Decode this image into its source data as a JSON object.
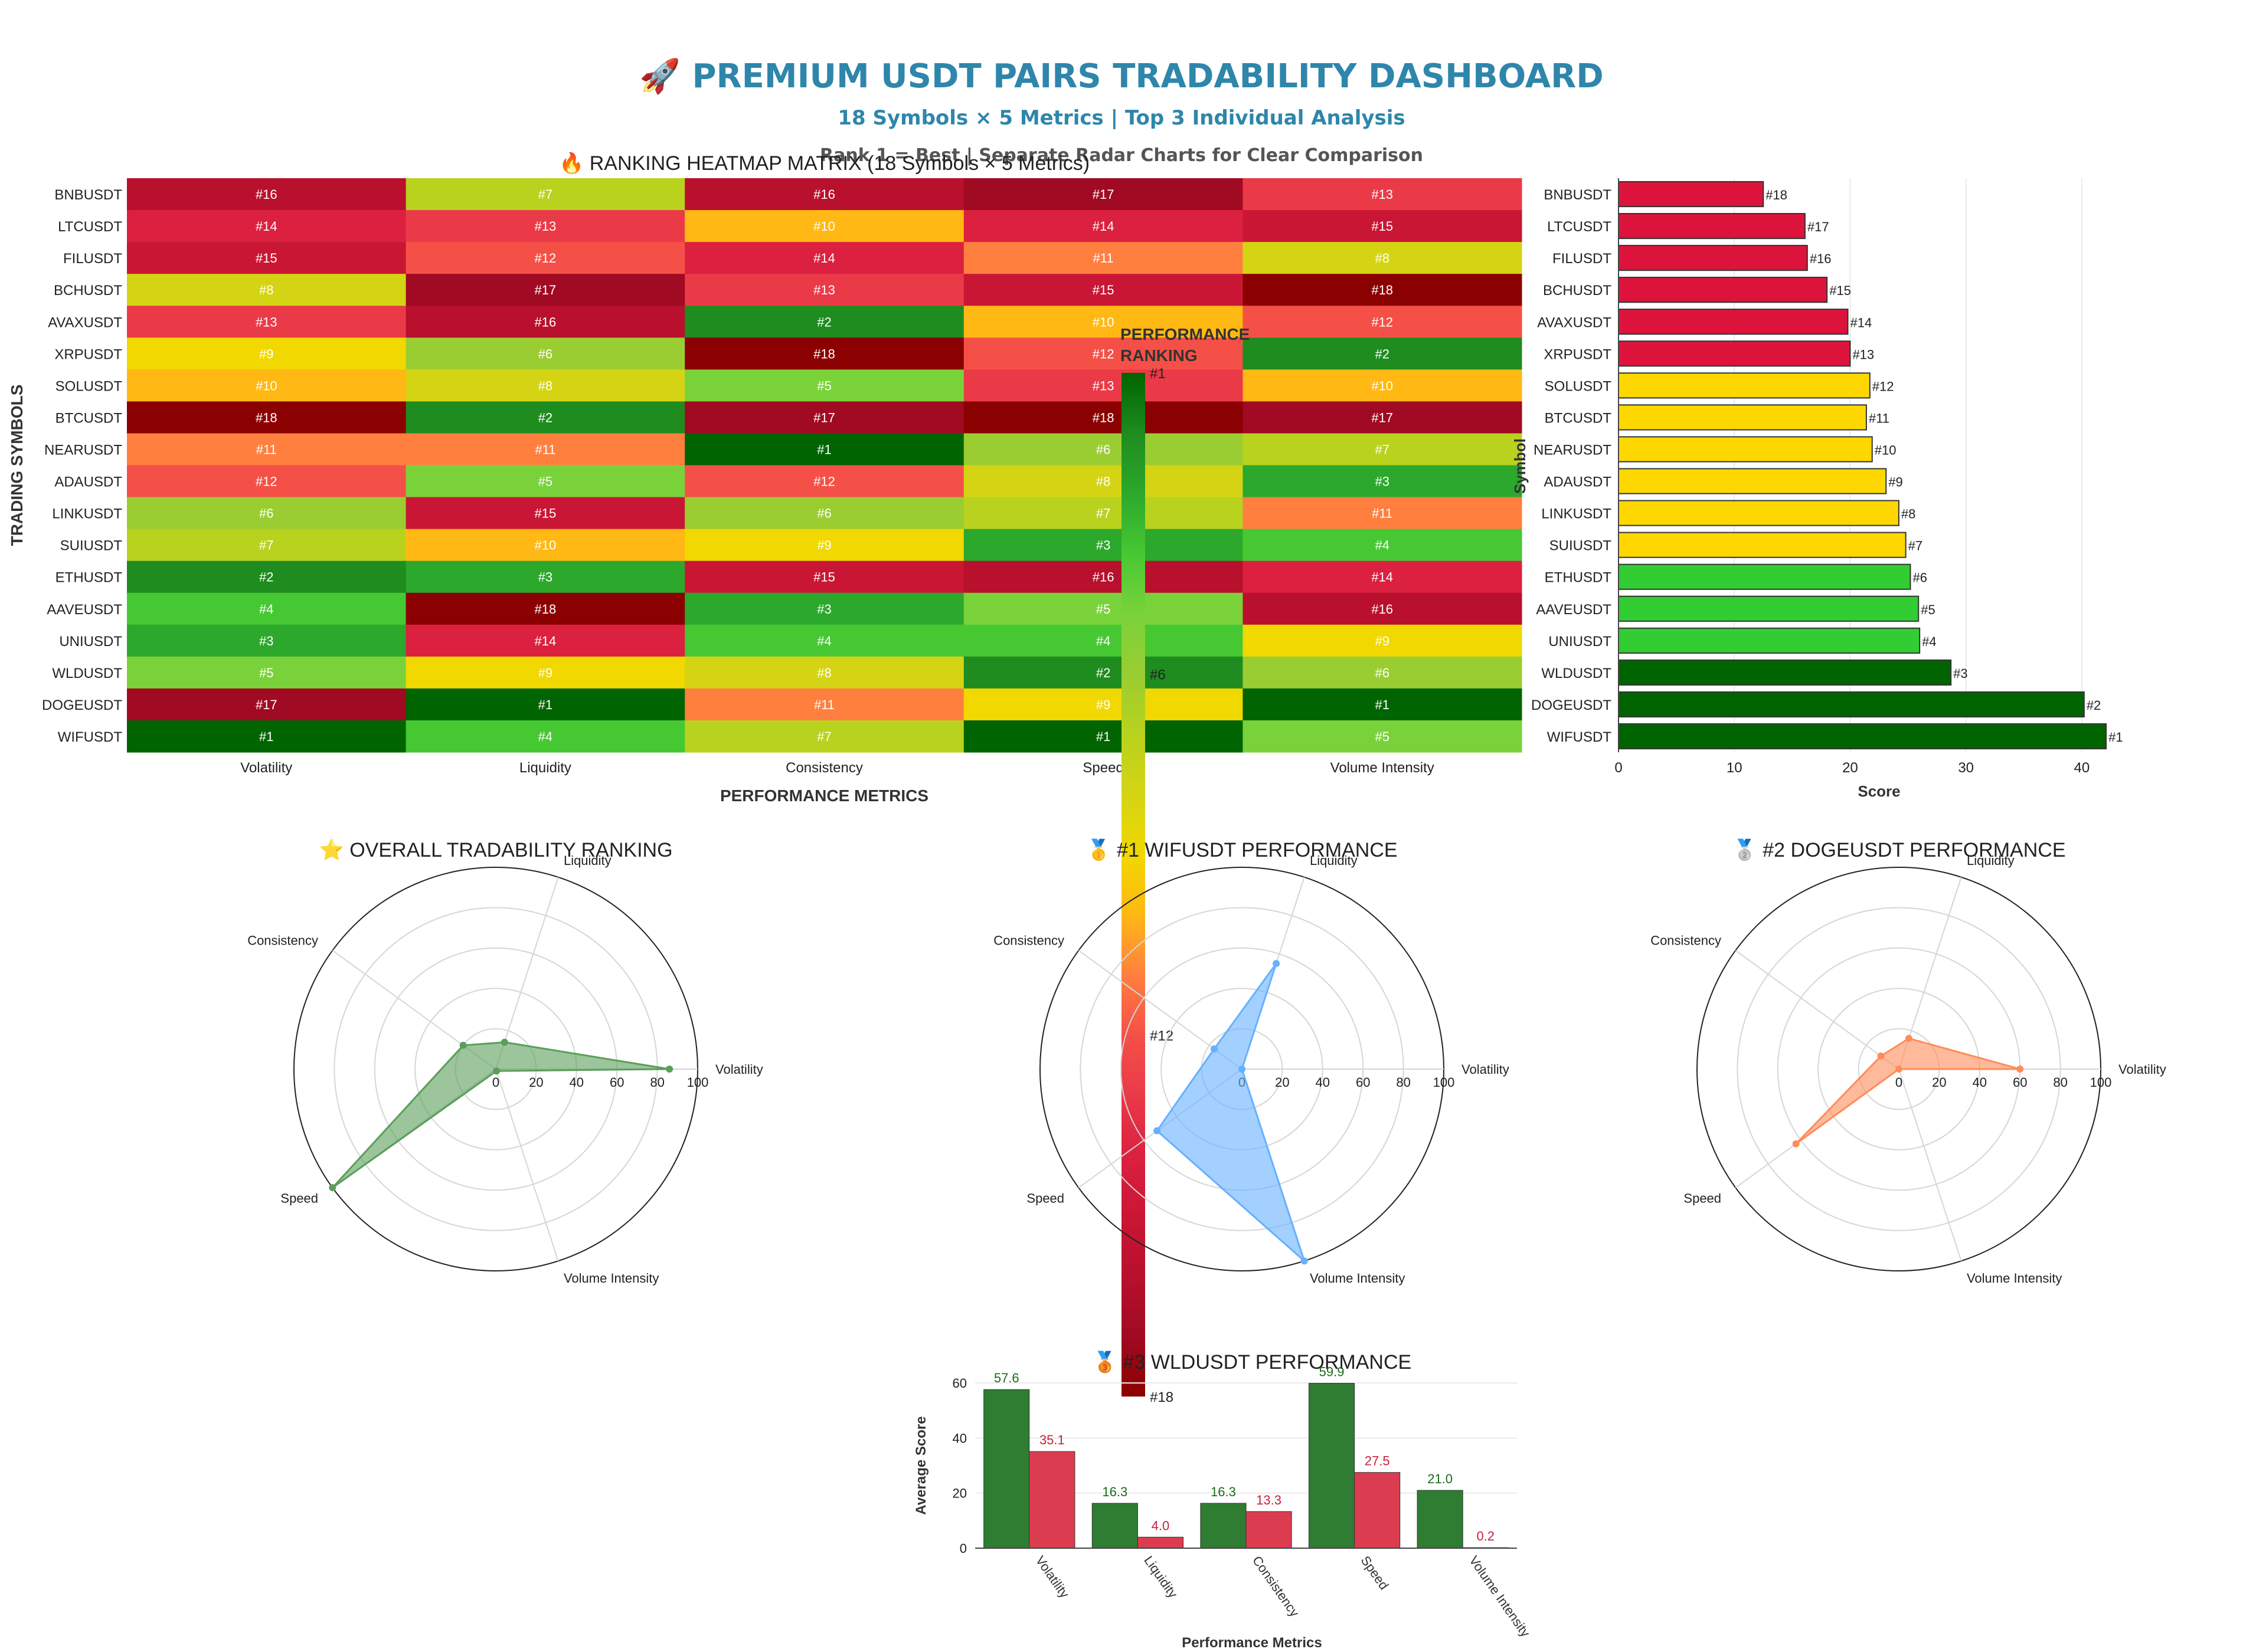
{
  "header": {
    "title": "🚀 PREMIUM USDT PAIRS TRADABILITY DASHBOARD",
    "subtitle": "18 Symbols × 5 Metrics | Top 3 Individual Analysis",
    "subtitle2": "Rank 1 = Best | Separate Radar Charts for Clear Comparison"
  },
  "colors": {
    "title": "#2e86ab",
    "rank_scale": [
      "#006400",
      "#1e8c1e",
      "#2ca82c",
      "#46c832",
      "#7ad23a",
      "#9acd32",
      "#b9d21e",
      "#d4d414",
      "#f0d800",
      "#ffb814",
      "#ff7f3f",
      "#f55047",
      "#ea3a48",
      "#dc2040",
      "#ca1635",
      "#b8102d",
      "#a00a22",
      "#8b0000"
    ],
    "score_bars": {
      "top": "#006400",
      "good": "#32cd32",
      "mid": "#ffd700",
      "low": "#dc143c"
    },
    "radar_overall": "#5a9e5a",
    "radar_wif": "#66b0ff",
    "radar_doge": "#ff8c5a",
    "bar_green": "#2e7d32",
    "bar_red": "#dc3c50"
  },
  "chart_data": [
    {
      "type": "heatmap",
      "title": "🔥 RANKING HEATMAP MATRIX (18 Symbols × 5 Metrics)",
      "xlabel": "PERFORMANCE METRICS",
      "ylabel": "TRADING SYMBOLS",
      "columns": [
        "Volatility",
        "Liquidity",
        "Consistency",
        "Speed",
        "Volume Intensity"
      ],
      "rows": [
        "BNBUSDT",
        "LTCUSDT",
        "FILUSDT",
        "BCHUSDT",
        "AVAXUSDT",
        "XRPUSDT",
        "SOLUSDT",
        "BTCUSDT",
        "NEARUSDT",
        "ADAUSDT",
        "LINKUSDT",
        "SUIUSDT",
        "ETHUSDT",
        "AAVEUSDT",
        "UNIUSDT",
        "WLDUSDT",
        "DOGEUSDT",
        "WIFUSDT"
      ],
      "values": [
        [
          16,
          7,
          16,
          17,
          13
        ],
        [
          14,
          13,
          10,
          14,
          15
        ],
        [
          15,
          12,
          14,
          11,
          8
        ],
        [
          8,
          17,
          13,
          15,
          18
        ],
        [
          13,
          16,
          2,
          10,
          12
        ],
        [
          9,
          6,
          18,
          12,
          2
        ],
        [
          10,
          8,
          5,
          13,
          10
        ],
        [
          18,
          2,
          17,
          18,
          17
        ],
        [
          11,
          11,
          1,
          6,
          7
        ],
        [
          12,
          5,
          12,
          8,
          3
        ],
        [
          6,
          15,
          6,
          7,
          11
        ],
        [
          7,
          10,
          9,
          3,
          4
        ],
        [
          2,
          3,
          15,
          16,
          14
        ],
        [
          4,
          18,
          3,
          5,
          16
        ],
        [
          3,
          14,
          4,
          4,
          9
        ],
        [
          5,
          9,
          8,
          2,
          6
        ],
        [
          17,
          1,
          11,
          9,
          1
        ],
        [
          1,
          4,
          7,
          1,
          5
        ]
      ],
      "colorbar": {
        "title": "PERFORMANCE RANKING",
        "ticks": [
          "#1",
          "#6",
          "#12",
          "#18"
        ],
        "tick_values": [
          1,
          6,
          12,
          18
        ],
        "range": [
          1,
          18
        ]
      }
    },
    {
      "type": "bar",
      "orientation": "horizontal",
      "categories": [
        "BNBUSDT",
        "LTCUSDT",
        "FILUSDT",
        "BCHUSDT",
        "AVAXUSDT",
        "XRPUSDT",
        "SOLUSDT",
        "BTCUSDT",
        "NEARUSDT",
        "ADAUSDT",
        "LINKUSDT",
        "SUIUSDT",
        "ETHUSDT",
        "AAVEUSDT",
        "UNIUSDT",
        "WLDUSDT",
        "DOGEUSDT",
        "WIFUSDT"
      ],
      "values": [
        12.5,
        16.1,
        16.3,
        18.0,
        19.8,
        20.0,
        21.7,
        21.4,
        21.9,
        23.1,
        24.2,
        24.8,
        25.2,
        25.9,
        26.0,
        28.7,
        40.2,
        42.1
      ],
      "labels": [
        "#18",
        "#17",
        "#16",
        "#15",
        "#14",
        "#13",
        "#12",
        "#11",
        "#10",
        "#9",
        "#8",
        "#7",
        "#6",
        "#5",
        "#4",
        "#3",
        "#2",
        "#1"
      ],
      "tiers": [
        "low",
        "low",
        "low",
        "low",
        "low",
        "low",
        "mid",
        "mid",
        "mid",
        "mid",
        "mid",
        "mid",
        "good",
        "good",
        "good",
        "top",
        "top",
        "top"
      ],
      "xlabel": "Score",
      "ylabel": "Symbol",
      "xlim": [
        0,
        45
      ],
      "xticks": [
        0,
        10,
        20,
        30,
        40
      ]
    },
    {
      "type": "radar",
      "title": "⭐ OVERALL TRADABILITY RANKING",
      "axes": [
        "Volatility",
        "Liquidity",
        "Consistency",
        "Speed",
        "Volume Intensity"
      ],
      "values": [
        86,
        14,
        20,
        100,
        1
      ],
      "radial_range": [
        0,
        100
      ],
      "radial_ticks": [
        0,
        20,
        40,
        60,
        80,
        100
      ]
    },
    {
      "type": "radar",
      "title": "🥇 #1 WIFUSDT PERFORMANCE",
      "axes": [
        "Volatility",
        "Liquidity",
        "Consistency",
        "Speed",
        "Volume Intensity"
      ],
      "values": [
        0,
        55,
        17,
        52,
        100
      ],
      "radial_range": [
        0,
        100
      ],
      "radial_ticks": [
        0,
        20,
        40,
        60,
        80,
        100
      ]
    },
    {
      "type": "radar",
      "title": "🥈 #2 DOGEUSDT PERFORMANCE",
      "axes": [
        "Volatility",
        "Liquidity",
        "Consistency",
        "Speed",
        "Volume Intensity"
      ],
      "values": [
        60,
        16,
        11,
        63,
        0
      ],
      "radial_range": [
        0,
        100
      ],
      "radial_ticks": [
        0,
        20,
        40,
        60,
        80,
        100
      ]
    },
    {
      "type": "bar",
      "title": "🥉 #3 WLDUSDT PERFORMANCE",
      "categories": [
        "Volatility",
        "Liquidity",
        "Consistency",
        "Speed",
        "Volume Intensity"
      ],
      "series": [
        {
          "values": [
            57.6,
            16.3,
            16.3,
            59.9,
            21.0
          ],
          "labels": [
            "57.6",
            "16.3",
            "16.3",
            "59.9",
            "21.0"
          ]
        },
        {
          "values": [
            35.1,
            4.0,
            13.3,
            27.5,
            0.2
          ],
          "labels": [
            "35.1",
            "4.0",
            "13.3",
            "27.5",
            "0.2"
          ]
        }
      ],
      "xlabel": "Performance Metrics",
      "ylabel": "Average Score",
      "ylim": [
        0,
        60
      ],
      "yticks": [
        0,
        20,
        40,
        60
      ]
    }
  ]
}
